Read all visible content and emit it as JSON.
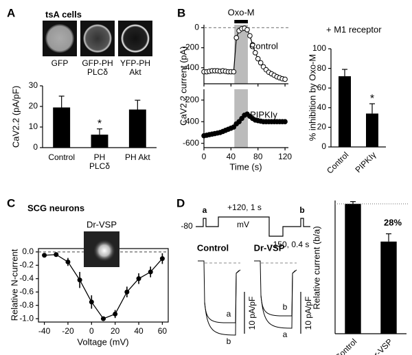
{
  "chart_data": [
    {
      "panel": "A",
      "type": "bar",
      "title": "tsA cells",
      "images": [
        "GFP",
        "GFP-PH PLCδ",
        "YFP-PH Akt"
      ],
      "ylabel": "CaV2.2 (pA/pF)",
      "categories": [
        "Control",
        "PH PLCδ",
        "PH Akt"
      ],
      "values": [
        19.5,
        6.3,
        18.5
      ],
      "errors": [
        5.5,
        2.8,
        4.5
      ],
      "significance": [
        null,
        "*",
        null
      ],
      "ylim": [
        0,
        30
      ],
      "yticks": [
        0,
        10,
        20,
        30
      ],
      "color": "#000000"
    },
    {
      "panel": "B",
      "type": "line",
      "title": "Oxo-M",
      "xspan": [
        45,
        65
      ],
      "x": [
        0,
        4,
        8,
        12,
        16,
        20,
        24,
        28,
        32,
        36,
        40,
        44,
        48,
        52,
        56,
        60,
        64,
        68,
        72,
        76,
        80,
        84,
        88,
        92,
        96,
        100,
        104,
        108,
        112,
        116,
        120
      ],
      "series": [
        {
          "name": "Control",
          "color": "#000000",
          "marker": "open",
          "values": [
            -440,
            -440,
            -435,
            -430,
            -430,
            -430,
            -435,
            -430,
            -435,
            -440,
            -440,
            -440,
            -100,
            -30,
            -10,
            -5,
            -20,
            -80,
            -170,
            -250,
            -310,
            -350,
            -390,
            -420,
            -445,
            -460,
            -475,
            -490,
            -500,
            -510,
            -515
          ]
        }
      ],
      "xlim": [
        0,
        125
      ],
      "ylim": [
        -560,
        30
      ],
      "xticks": [
        0,
        40,
        80,
        120
      ],
      "yticks": [
        0,
        -200,
        -400
      ]
    },
    {
      "type": "line",
      "ylabel": "CaV2.2 current (pA)",
      "xlabel": "Time (s)",
      "xspan": [
        45,
        65
      ],
      "x": [
        0,
        4,
        8,
        12,
        16,
        20,
        24,
        28,
        32,
        36,
        40,
        44,
        48,
        52,
        56,
        60,
        64,
        68,
        72,
        76,
        80,
        84,
        88,
        92,
        96,
        100,
        104,
        108,
        112,
        116,
        120
      ],
      "series": [
        {
          "name": "PIPKIγ",
          "color": "#000000",
          "marker": "filled",
          "values": [
            -530,
            -525,
            -520,
            -515,
            -510,
            -505,
            -500,
            -490,
            -480,
            -470,
            -460,
            -450,
            -420,
            -400,
            -370,
            -340,
            -330,
            -350,
            -370,
            -385,
            -390,
            -395,
            -400,
            -400,
            -400,
            -400,
            -400,
            -400,
            -400,
            -400,
            -400
          ]
        }
      ],
      "xlim": [
        0,
        125
      ],
      "ylim": [
        -640,
        -100
      ],
      "xticks": [
        0,
        40,
        80,
        120
      ],
      "yticks": [
        -200,
        -400,
        -600
      ]
    },
    {
      "type": "bar",
      "subtitle": "+ M1 receptor",
      "ylabel": "% inhibition by Oxo-M",
      "categories": [
        "Control",
        "PIPKIγ"
      ],
      "values": [
        72,
        34
      ],
      "errors": [
        7,
        10
      ],
      "significance": [
        null,
        "*"
      ],
      "ylim": [
        0,
        100
      ],
      "yticks": [
        0,
        20,
        40,
        60,
        80,
        100
      ],
      "color": "#000000"
    },
    {
      "panel": "C",
      "type": "errorline",
      "title": "SCG neurons",
      "annotation": "Dr-VSP",
      "x": [
        -40,
        -30,
        -20,
        -10,
        0,
        10,
        20,
        30,
        40,
        50,
        60
      ],
      "values": [
        -0.05,
        -0.04,
        -0.15,
        -0.42,
        -0.75,
        -1.0,
        -0.93,
        -0.6,
        -0.4,
        -0.3,
        -0.1
      ],
      "errors": [
        0.03,
        0.03,
        0.06,
        0.12,
        0.1,
        0.03,
        0.06,
        0.08,
        0.08,
        0.08,
        0.08
      ],
      "xlim": [
        -45,
        65
      ],
      "ylim": [
        -1.05,
        0.05
      ],
      "xticks": [
        -40,
        -20,
        0,
        20,
        40,
        60
      ],
      "yticks": [
        {
          "value": 0,
          "label": "0.0"
        },
        -0.2,
        -0.4,
        -0.6,
        -0.8,
        {
          "value": -1,
          "label": "-1.0"
        }
      ],
      "xlabel": "Voltage (mV)",
      "ylabel": "Relative N-current",
      "color": "#000000"
    },
    {
      "panel": "D",
      "type": "traces",
      "protocol": {
        "pre": "a",
        "holding": "-80",
        "step": "+120, 1 s",
        "unit": "mV",
        "post": "-150, 0.4 s",
        "test": "b"
      },
      "traces": [
        {
          "title": "Control",
          "upper": "a",
          "lower": "b",
          "scale": "10 pA/pF"
        },
        {
          "title": "Dr-VSP",
          "upper": "b",
          "lower": "a",
          "scale": "10 pA/pF"
        }
      ]
    },
    {
      "type": "bar",
      "ylabel": "Relative current (b/a)",
      "categories": [
        "Control",
        "Dr-VSP"
      ],
      "values": [
        1.17,
        0.83
      ],
      "errors": [
        0.02,
        0.07
      ],
      "annotation": "28%",
      "reference": true,
      "ylim": [
        0,
        1.2
      ],
      "color": "#000000"
    }
  ]
}
